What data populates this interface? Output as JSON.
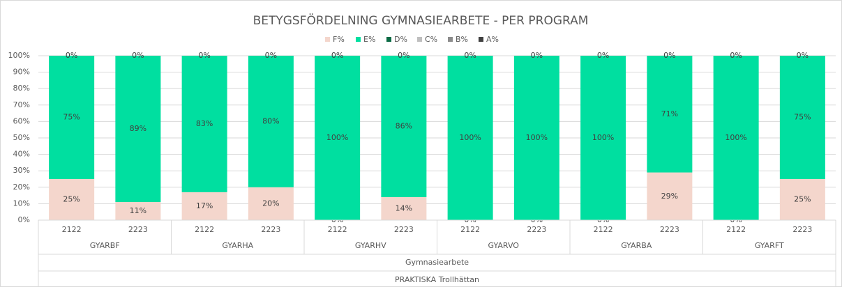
{
  "chart_data": {
    "type": "stacked_bar",
    "title": "BETYGSFÖRDELNING GYMNASIEARBETE - PER PROGRAM",
    "categories": [
      "2122",
      "2223",
      "2122",
      "2223",
      "2122",
      "2223",
      "2122",
      "2223",
      "2122",
      "2223",
      "2122",
      "2223"
    ],
    "groups": [
      "GYARBF",
      "GYARHA",
      "GYARHV",
      "GYARVO",
      "GYARBA",
      "GYARFT"
    ],
    "super_group": "Gymnasiearbete",
    "outer_group": "PRAKTISKA Trollhättan",
    "series": [
      {
        "name": "F%",
        "color": "#f4d6cc",
        "values": [
          25,
          11,
          17,
          20,
          0,
          14,
          0,
          0,
          0,
          29,
          0,
          25
        ],
        "value_labels": [
          "25%",
          "11%",
          "17%",
          "20%",
          "0%",
          "14%",
          "0%",
          "0%",
          "0%",
          "29%",
          "0%",
          "25%"
        ]
      },
      {
        "name": "E%",
        "color": "#00dfa0",
        "values": [
          75,
          89,
          83,
          80,
          100,
          86,
          100,
          100,
          100,
          71,
          100,
          75
        ],
        "value_labels": [
          "75%",
          "89%",
          "83%",
          "80%",
          "100%",
          "86%",
          "100%",
          "100%",
          "100%",
          "71%",
          "100%",
          "75%"
        ]
      },
      {
        "name": "D%",
        "color": "#0b6b45",
        "values": [
          0,
          0,
          0,
          0,
          0,
          0,
          0,
          0,
          0,
          0,
          0,
          0
        ]
      },
      {
        "name": "C%",
        "color": "#bfbfbf",
        "values": [
          0,
          0,
          0,
          0,
          0,
          0,
          0,
          0,
          0,
          0,
          0,
          0
        ]
      },
      {
        "name": "B%",
        "color": "#8c8c8c",
        "values": [
          0,
          0,
          0,
          0,
          0,
          0,
          0,
          0,
          0,
          0,
          0,
          0
        ]
      },
      {
        "name": "A%",
        "color": "#404040",
        "values": [
          0,
          0,
          0,
          0,
          0,
          0,
          0,
          0,
          0,
          0,
          0,
          0
        ],
        "value_labels": [
          "0%",
          "0%",
          "0%",
          "0%",
          "0%",
          "0%",
          "0%",
          "0%",
          "0%",
          "0%",
          "0%",
          "0%"
        ]
      }
    ],
    "ylim": [
      0,
      100
    ],
    "yticks": [
      {
        "value": 0,
        "label": "0%"
      },
      {
        "value": 10,
        "label": "10%"
      },
      {
        "value": 20,
        "label": "20%"
      },
      {
        "value": 30,
        "label": "30%"
      },
      {
        "value": 40,
        "label": "40%"
      },
      {
        "value": 50,
        "label": "50%"
      },
      {
        "value": 60,
        "label": "60%"
      },
      {
        "value": 70,
        "label": "70%"
      },
      {
        "value": 80,
        "label": "80%"
      },
      {
        "value": 90,
        "label": "90%"
      },
      {
        "value": 100,
        "label": "100%"
      }
    ],
    "grid": true,
    "legend": "top"
  }
}
